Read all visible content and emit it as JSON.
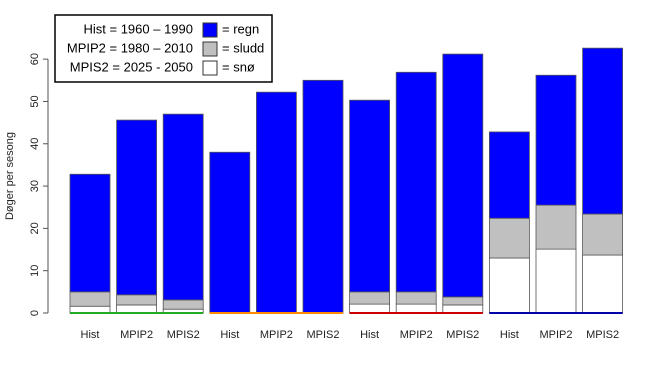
{
  "chart_data": {
    "type": "stacked_bar",
    "y_label": "Døger per sesong",
    "categories": [
      "Hist",
      "MPIP2",
      "MPIS2",
      "Hist",
      "MPIP2",
      "MPIS2",
      "Hist",
      "MPIP2",
      "MPIS2",
      "Hist",
      "MPIP2",
      "MPIS2"
    ],
    "series": [
      {
        "name": "= regn",
        "color": "#0000ff",
        "values": [
          27.8,
          41.3,
          43.9,
          38.0,
          52.2,
          55.0,
          45.3,
          51.9,
          57.4,
          20.4,
          30.7,
          39.2
        ]
      },
      {
        "name": "= sludd",
        "color": "#c0c0c0",
        "values": [
          3.4,
          2.4,
          2.2,
          0,
          0,
          0,
          2.9,
          2.9,
          1.9,
          9.4,
          10.4,
          9.7
        ]
      },
      {
        "name": "= snø",
        "color": "#ffffff",
        "values": [
          1.6,
          1.9,
          0.9,
          0,
          0,
          0,
          2.1,
          2.1,
          1.9,
          13.0,
          15.1,
          13.7
        ]
      }
    ],
    "periods": [
      "Hist = 1960 – 1990",
      "MPIP2 = 1980 – 2010",
      "MPIS2 = 2025 - 2050"
    ],
    "baseline_colors": [
      "#22aa22",
      "#ff8c00",
      "#cc0000",
      "#0000aa"
    ],
    "ylim": [
      0,
      65
    ],
    "yticks": [
      0,
      10,
      20,
      30,
      40,
      50,
      60
    ]
  }
}
